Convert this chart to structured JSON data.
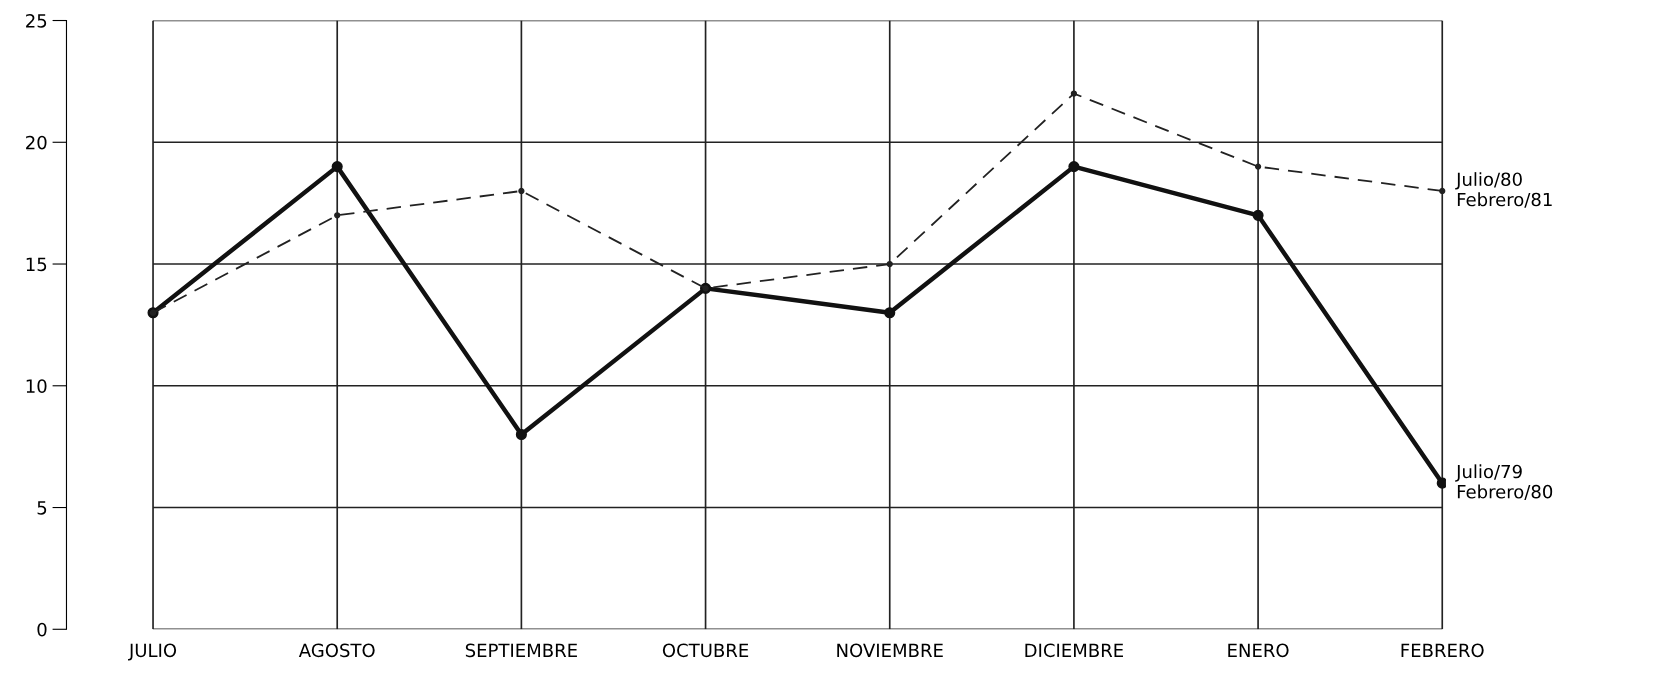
{
  "chart_data": {
    "type": "line",
    "categories": [
      "JULIO",
      "AGOSTO",
      "SEPTIEMBRE",
      "OCTUBRE",
      "NOVIEMBRE",
      "DICIEMBRE",
      "ENERO",
      "FEBRERO"
    ],
    "series": [
      {
        "name": "Julio/79\nFebrero/80",
        "color": "#111111",
        "line_style": "solid",
        "values": [
          13,
          19,
          8,
          14,
          13,
          19,
          17,
          6
        ]
      },
      {
        "name": "Julio/80\nFebrero/81",
        "color": "#222222",
        "line_style": "dashed",
        "values": [
          13,
          17,
          18,
          14,
          15,
          22,
          19,
          18
        ]
      }
    ],
    "ylim": [
      0,
      25
    ],
    "yticks": [
      0,
      5,
      10,
      15,
      20,
      25
    ],
    "grid": true,
    "marker": "circle",
    "legend": false
  }
}
